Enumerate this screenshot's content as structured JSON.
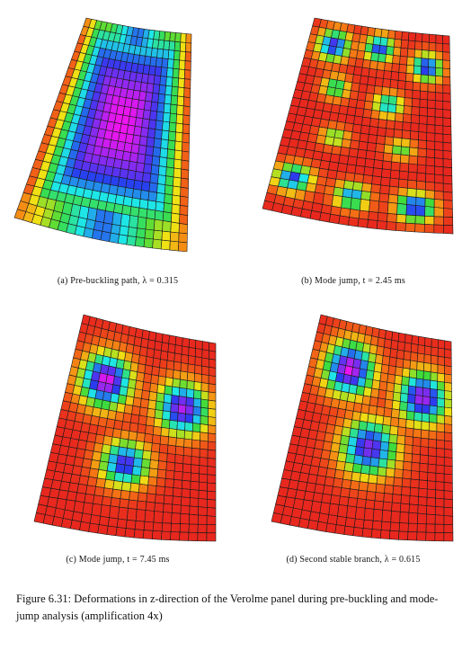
{
  "figure": {
    "panels": [
      {
        "id": "a",
        "caption": "(a) Pre-buckling path, λ = 0.315",
        "dents": [
          {
            "u": 0.5,
            "v": 0.45,
            "rx": 0.32,
            "ry": 0.38,
            "depth": 1.0,
            "type": "box"
          }
        ],
        "colormap": "prebuckle"
      },
      {
        "id": "b",
        "caption": "(b) Mode jump, t = 2.45 ms",
        "dents": [
          {
            "u": 0.18,
            "v": 0.12,
            "rx": 0.13,
            "ry": 0.09,
            "depth": 0.85
          },
          {
            "u": 0.5,
            "v": 0.1,
            "rx": 0.12,
            "ry": 0.08,
            "depth": 0.8
          },
          {
            "u": 0.84,
            "v": 0.17,
            "rx": 0.12,
            "ry": 0.08,
            "depth": 0.85
          },
          {
            "u": 0.25,
            "v": 0.33,
            "rx": 0.1,
            "ry": 0.07,
            "depth": 0.55
          },
          {
            "u": 0.6,
            "v": 0.38,
            "rx": 0.11,
            "ry": 0.07,
            "depth": 0.65
          },
          {
            "u": 0.3,
            "v": 0.58,
            "rx": 0.1,
            "ry": 0.06,
            "depth": 0.45
          },
          {
            "u": 0.7,
            "v": 0.6,
            "rx": 0.1,
            "ry": 0.06,
            "depth": 0.45
          },
          {
            "u": 0.12,
            "v": 0.82,
            "rx": 0.12,
            "ry": 0.08,
            "depth": 0.8
          },
          {
            "u": 0.45,
            "v": 0.86,
            "rx": 0.11,
            "ry": 0.07,
            "depth": 0.7
          },
          {
            "u": 0.8,
            "v": 0.88,
            "rx": 0.12,
            "ry": 0.08,
            "depth": 0.85
          }
        ],
        "colormap": "standard"
      },
      {
        "id": "c",
        "caption": "(c) Mode jump, t = 7.45 ms",
        "dents": [
          {
            "u": 0.25,
            "v": 0.28,
            "rx": 0.2,
            "ry": 0.15,
            "depth": 1.0
          },
          {
            "u": 0.78,
            "v": 0.35,
            "rx": 0.2,
            "ry": 0.15,
            "depth": 0.95
          },
          {
            "u": 0.45,
            "v": 0.66,
            "rx": 0.17,
            "ry": 0.13,
            "depth": 0.85
          }
        ],
        "colormap": "standard"
      },
      {
        "id": "d",
        "caption": "(d) Second stable branch, λ = 0.615",
        "dents": [
          {
            "u": 0.28,
            "v": 0.22,
            "rx": 0.2,
            "ry": 0.15,
            "depth": 1.0
          },
          {
            "u": 0.8,
            "v": 0.3,
            "rx": 0.2,
            "ry": 0.15,
            "depth": 0.95
          },
          {
            "u": 0.48,
            "v": 0.58,
            "rx": 0.2,
            "ry": 0.16,
            "depth": 0.9
          }
        ],
        "colormap": "standard"
      }
    ],
    "caption_label": "Figure 6.31:",
    "caption_text": "Deformations in z-direction of the Verolme panel during pre-buckling and mode-jump analysis (amplification 4x)"
  }
}
